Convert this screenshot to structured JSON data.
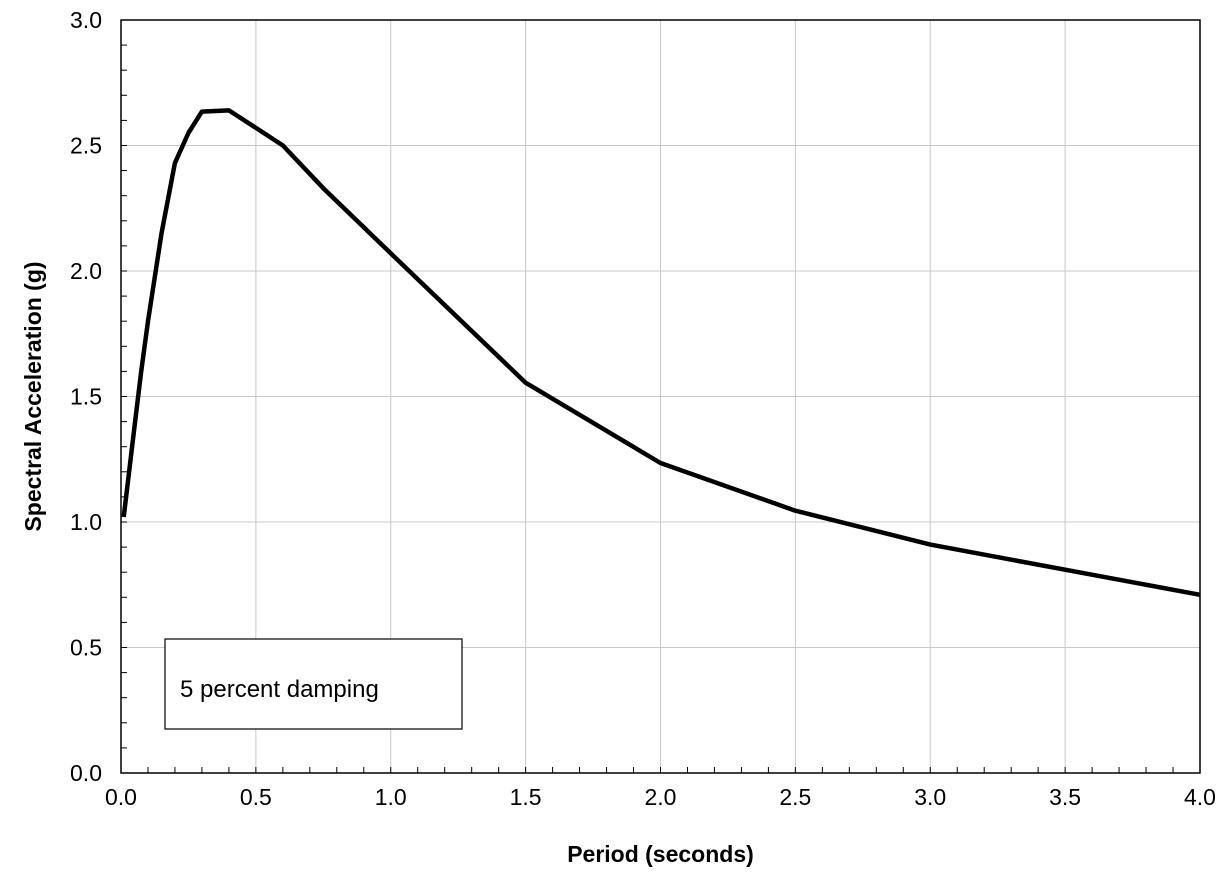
{
  "chart_data": {
    "type": "line",
    "title": "",
    "xlabel": "Period (seconds)",
    "ylabel": "Spectral Acceleration (g)",
    "xlim": [
      0.0,
      4.0
    ],
    "ylim": [
      0.0,
      3.0
    ],
    "x_ticks": [
      "0.0",
      "0.5",
      "1.0",
      "1.5",
      "2.0",
      "2.5",
      "3.0",
      "3.5",
      "4.0"
    ],
    "y_ticks": [
      "0.0",
      "0.5",
      "1.0",
      "1.5",
      "2.0",
      "2.5",
      "3.0"
    ],
    "grid": true,
    "legend": "none",
    "annotation": "5 percent damping",
    "series": [
      {
        "x": [
          0.01,
          0.03,
          0.05,
          0.075,
          0.1,
          0.15,
          0.2,
          0.25,
          0.3,
          0.4,
          0.5,
          0.6,
          0.75,
          1.0,
          1.5,
          2.0,
          2.5,
          3.0,
          4.0
        ],
        "values": [
          1.02,
          1.2,
          1.38,
          1.6,
          1.8,
          2.15,
          2.43,
          2.55,
          2.635,
          2.64,
          2.57,
          2.5,
          2.33,
          2.07,
          1.555,
          1.235,
          1.045,
          0.91,
          0.71
        ]
      }
    ]
  }
}
